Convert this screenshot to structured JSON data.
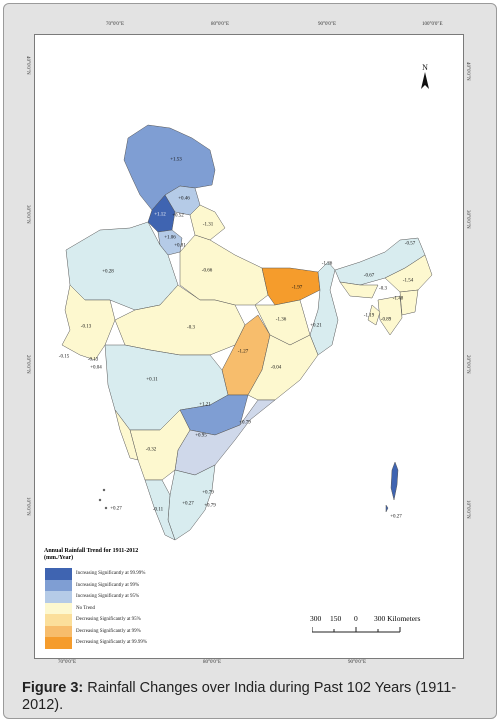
{
  "map": {
    "top_lon_labels": [
      "70°0'0\"E",
      "80°0'0\"E",
      "90°0'0\"E",
      "100°0'0\"E"
    ],
    "bottom_lon_labels": [
      "70°0'0\"E",
      "80°0'0\"E",
      "90°0'0\"E"
    ],
    "left_lat_labels": [
      "30°0'0\"N",
      "20°0'0\"N",
      "10°0'0\"N"
    ],
    "right_lat_labels": [
      "30°0'0\"N",
      "20°0'0\"N",
      "10°0'0\"N"
    ],
    "top_left_lat_label": "40°0'0\"N",
    "top_right_lat_label": "40°0'0\"N",
    "north_label": "N",
    "legend": {
      "title_line1": "Annual Rainfall Trend for 1911-2012",
      "title_line2": "(mm./Year)",
      "items": [
        {
          "label": "Increasing Significantly at 99.99%",
          "color": "#3f64b1"
        },
        {
          "label": "Increasing Significantly at 99%",
          "color": "#7f9ed3"
        },
        {
          "label": "Increasing Significantly at 95%",
          "color": "#b5cbe7"
        },
        {
          "label": "No Trend",
          "color": "#fdf8cf"
        },
        {
          "label": "Decreasing Significantly at 95%",
          "color": "#fbdf9b"
        },
        {
          "label": "Decreasing Significantly at 99%",
          "color": "#f7bd6c"
        },
        {
          "label": "Decreasing Significantly at 99.99%",
          "color": "#f59c2c"
        }
      ]
    },
    "scale": {
      "labels": [
        "300",
        "150",
        "0",
        "300 Kilometers"
      ]
    },
    "values": [
      "+1.53",
      "+0.46",
      "+1.12",
      "+0.52",
      "-1.31",
      "+1.06",
      "+0.81",
      "+0.28",
      "-0.66",
      "-1.97",
      "-1.26",
      "-0.57",
      "-0.67",
      "-0.3",
      "-1.54",
      "-1.48",
      "-1.19",
      "-0.89",
      "-0.13",
      "-0.3",
      "-1.36",
      "+0.21",
      "-0.15",
      "-0.13",
      "+0.04",
      "-1.27",
      "-0.04",
      "+0.11",
      "+1.21",
      "+0.79",
      "+0.95",
      "-0.32",
      "+0.79",
      "+0.79",
      "+0.27",
      "+0.27",
      "-0.11",
      "+0.27"
    ]
  },
  "caption": {
    "label": "Figure 3:",
    "text": " Rainfall Changes over India during Past 102 Years (1911-2012)."
  }
}
